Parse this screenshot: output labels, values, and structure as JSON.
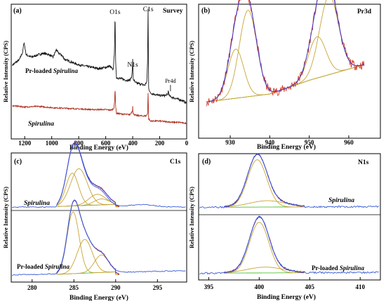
{
  "chart_data": [
    {
      "type": "line",
      "panel_label": "(a)",
      "title": "Survey",
      "xlabel": "Binding Energy (eV)",
      "ylabel": "Relative Intensity (CPS)",
      "x_reversed": true,
      "xlim": [
        1300,
        0
      ],
      "xticks": [
        1200,
        1000,
        800,
        600,
        400,
        200,
        0
      ],
      "yticks": false,
      "series": [
        {
          "name": "Pr-loaded Spirulina",
          "color": "#1a1a1a",
          "x": [
            1290,
            1240,
            1215,
            1205,
            1190,
            1150,
            1100,
            1060,
            1020,
            990,
            965,
            950,
            930,
            900,
            850,
            800,
            750,
            700,
            650,
            600,
            570,
            545,
            535,
            531,
            527,
            520,
            480,
            450,
            420,
            405,
            400,
            396,
            380,
            340,
            310,
            295,
            290,
            286,
            282,
            270,
            240,
            200,
            160,
            140,
            135,
            130,
            120,
            90,
            60,
            30,
            0
          ],
          "y": [
            0.58,
            0.62,
            0.68,
            0.76,
            0.66,
            0.64,
            0.66,
            0.67,
            0.66,
            0.64,
            0.7,
            0.67,
            0.66,
            0.62,
            0.6,
            0.58,
            0.57,
            0.56,
            0.55,
            0.56,
            0.57,
            0.54,
            0.68,
            1.0,
            0.62,
            0.48,
            0.47,
            0.46,
            0.46,
            0.5,
            0.62,
            0.47,
            0.44,
            0.43,
            0.42,
            0.45,
            0.6,
            1.02,
            0.4,
            0.36,
            0.35,
            0.34,
            0.34,
            0.35,
            0.38,
            0.34,
            0.33,
            0.32,
            0.31,
            0.3,
            0.28
          ]
        },
        {
          "name": "Spirulina",
          "color": "#b03020",
          "x": [
            1290,
            1200,
            1100,
            1000,
            900,
            800,
            700,
            600,
            560,
            540,
            533,
            531,
            527,
            520,
            480,
            420,
            402,
            400,
            398,
            380,
            330,
            300,
            290,
            286,
            282,
            270,
            200,
            150,
            100,
            50,
            0
          ],
          "y": [
            0.26,
            0.25,
            0.255,
            0.245,
            0.24,
            0.235,
            0.23,
            0.23,
            0.225,
            0.24,
            0.3,
            0.42,
            0.26,
            0.2,
            0.195,
            0.19,
            0.22,
            0.26,
            0.2,
            0.185,
            0.18,
            0.18,
            0.2,
            0.36,
            0.16,
            0.14,
            0.14,
            0.135,
            0.13,
            0.13,
            0.12
          ]
        }
      ],
      "annotations": [
        {
          "text": "O1s",
          "x": 531
        },
        {
          "text": "N1s",
          "x": 400
        },
        {
          "text": "C1s",
          "x": 285
        },
        {
          "text": "Pr4d",
          "x": 120
        }
      ]
    },
    {
      "type": "line",
      "panel_label": "(b)",
      "title": "Pr3d",
      "xlabel": "Binding Energy (eV)",
      "ylabel": "Relative Intensity (CPS)",
      "xlim": [
        922,
        968
      ],
      "xticks": [
        930,
        940,
        950,
        960
      ],
      "yticks": false,
      "peaks": [
        {
          "center": 934.5,
          "height": 0.88,
          "width": 2.2
        },
        {
          "center": 931.4,
          "height": 0.5,
          "width": 2.0
        },
        {
          "center": 955.0,
          "height": 0.8,
          "width": 2.4
        },
        {
          "center": 952.0,
          "height": 0.42,
          "width": 2.2
        }
      ],
      "background": {
        "x": [
          924,
          940,
          950,
          964
        ],
        "y": [
          0.12,
          0.2,
          0.34,
          0.5
        ]
      }
    },
    {
      "type": "line",
      "panel_label": "(c)",
      "title": "C1s",
      "xlabel": "Binding Energy (eV)",
      "ylabel": "Relative Intensity (CPS)",
      "xlim": [
        277.5,
        298.5
      ],
      "xticks": [
        280,
        285,
        290,
        295
      ],
      "yticks": false,
      "subplots": [
        {
          "label": "Spirulina",
          "peaks": [
            {
              "center": 284.8,
              "height": 0.55,
              "width": 0.75
            },
            {
              "center": 285.6,
              "height": 0.62,
              "width": 1.0
            },
            {
              "center": 287.8,
              "height": 0.18,
              "width": 1.0
            },
            {
              "center": 288.3,
              "height": 0.1,
              "width": 0.9
            }
          ]
        },
        {
          "label": "Pr-loaded Spirulina",
          "peaks": [
            {
              "center": 284.9,
              "height": 0.88,
              "width": 0.72
            },
            {
              "center": 286.3,
              "height": 0.48,
              "width": 0.9
            },
            {
              "center": 288.3,
              "height": 0.25,
              "width": 0.85
            }
          ]
        }
      ]
    },
    {
      "type": "line",
      "panel_label": "(d)",
      "title": "N1s",
      "xlabel": "Binding Energy (eV)",
      "ylabel": "Relative Intensity (CPS)",
      "xlim": [
        394,
        412
      ],
      "xticks": [
        395,
        400,
        405,
        410
      ],
      "yticks": false,
      "subplots": [
        {
          "label": "Spirulina",
          "peaks": [
            {
              "center": 399.8,
              "height": 0.9,
              "width": 0.95
            },
            {
              "center": 400.8,
              "height": 0.12,
              "width": 1.8
            }
          ]
        },
        {
          "label": "Pr-loaded Spirulina",
          "peaks": [
            {
              "center": 400.0,
              "height": 0.88,
              "width": 0.95
            },
            {
              "center": 400.6,
              "height": 0.1,
              "width": 1.8
            }
          ]
        }
      ]
    }
  ],
  "colors": {
    "raw_data": "#d83018",
    "envelope": "#3b3bd6",
    "components": "#c8a436",
    "background": "#52c034",
    "survey_top": "#1a1a1a",
    "survey_bottom": "#b03020",
    "residual_line": "#3b5bd6"
  }
}
